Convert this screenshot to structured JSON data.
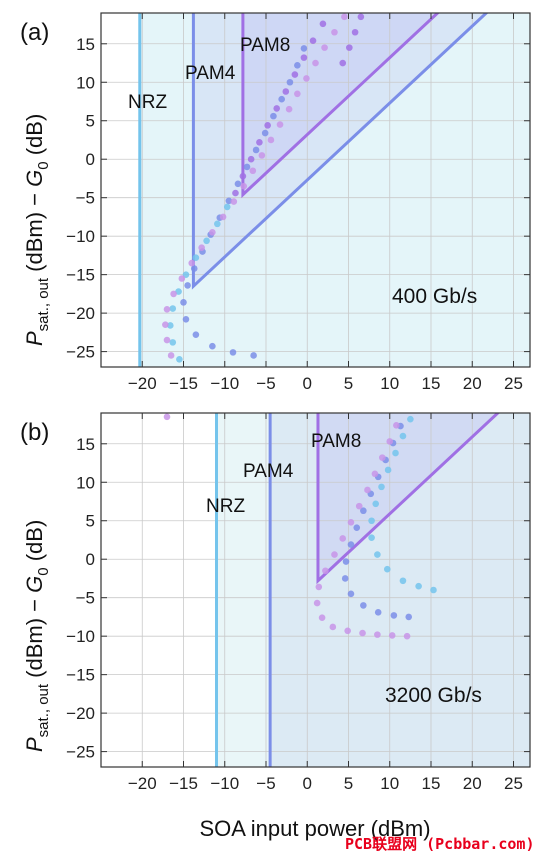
{
  "chart_data": [
    {
      "type": "area",
      "panel_label": "(a)",
      "rate_label": "400 Gb/s",
      "xlim": [
        -25,
        27
      ],
      "ylim": [
        -27,
        19
      ],
      "x_ticks": [
        -20,
        -15,
        -10,
        -5,
        0,
        5,
        10,
        15,
        20,
        25
      ],
      "y_ticks": [
        -25,
        -20,
        -15,
        -10,
        -5,
        0,
        5,
        10,
        15
      ],
      "ylabel": "P_sat., out (dBm) − G_0 (dB)",
      "xlabel": "",
      "regions": [
        {
          "name": "NRZ",
          "x_start": -20.3,
          "color": "#74c4ec",
          "fill": "#dff3f8"
        },
        {
          "name": "PAM4",
          "vertex": [
            -13.8,
            -16.5
          ],
          "slope": 1,
          "color": "#7b8ee8",
          "fill": "#d6e3f6"
        },
        {
          "name": "PAM8",
          "vertex": [
            -7.8,
            -4.6
          ],
          "slope": 1,
          "color": "#a070e4",
          "fill": "#ccd3f4"
        }
      ],
      "dotted_series": [
        {
          "color": "#74c4ec",
          "points": [
            [
              -15.5,
              -26
            ],
            [
              -16.3,
              -23.8
            ],
            [
              -16.6,
              -21.6
            ],
            [
              -16.3,
              -19.4
            ],
            [
              -15.6,
              -17.2
            ],
            [
              -14.7,
              -15
            ],
            [
              -13.5,
              -12.8
            ],
            [
              -12.2,
              -10.6
            ],
            [
              -10.9,
              -8.4
            ],
            [
              -9.7,
              -6.2
            ]
          ]
        },
        {
          "color": "#7b8ee8",
          "points": [
            [
              -6.5,
              -25.5
            ],
            [
              -9,
              -25.1
            ],
            [
              -11.5,
              -24.3
            ],
            [
              -13.5,
              -22.8
            ],
            [
              -14.7,
              -20.8
            ],
            [
              -15,
              -18.6
            ],
            [
              -14.5,
              -16.4
            ],
            [
              -13.7,
              -14.2
            ],
            [
              -12.7,
              -12
            ],
            [
              -11.7,
              -9.8
            ],
            [
              -10.6,
              -7.6
            ],
            [
              -9.5,
              -5.4
            ],
            [
              -8.4,
              -3.2
            ],
            [
              -7.3,
              -1
            ],
            [
              -6.2,
              1.2
            ],
            [
              -5.1,
              3.4
            ],
            [
              -4.1,
              5.6
            ],
            [
              -3.1,
              7.8
            ],
            [
              -2.1,
              10
            ],
            [
              -1.2,
              12.2
            ],
            [
              -0.4,
              14.4
            ]
          ]
        },
        {
          "color": "#c894e8",
          "points": [
            [
              -16.5,
              -25.5
            ],
            [
              -17,
              -23.5
            ],
            [
              -17.2,
              -21.5
            ],
            [
              -17,
              -19.5
            ],
            [
              -16.2,
              -17.5
            ],
            [
              -15.2,
              -15.5
            ],
            [
              -14,
              -13.5
            ],
            [
              -12.8,
              -11.5
            ],
            [
              -11.5,
              -9.5
            ],
            [
              -10.2,
              -7.5
            ],
            [
              -8.9,
              -5.5
            ],
            [
              -7.7,
              -3.5
            ],
            [
              -6.6,
              -1.5
            ],
            [
              -5.5,
              0.5
            ],
            [
              -4.4,
              2.5
            ],
            [
              -3.3,
              4.5
            ],
            [
              -2.2,
              6.5
            ],
            [
              -1.2,
              8.5
            ],
            [
              -0.1,
              10.5
            ],
            [
              1,
              12.5
            ],
            [
              2.1,
              14.5
            ],
            [
              3.3,
              16.5
            ],
            [
              4.5,
              18.5
            ]
          ]
        },
        {
          "color": "#a070e4",
          "points": [
            [
              -8.7,
              -4.4
            ],
            [
              -7.8,
              -2.2
            ],
            [
              -6.8,
              0
            ],
            [
              -5.8,
              2.2
            ],
            [
              -4.8,
              4.4
            ],
            [
              -3.7,
              6.6
            ],
            [
              -2.6,
              8.8
            ],
            [
              -1.5,
              11
            ],
            [
              -0.4,
              13.2
            ],
            [
              0.7,
              15.4
            ],
            [
              1.9,
              17.6
            ],
            [
              6.5,
              18.5
            ],
            [
              5.8,
              16.5
            ],
            [
              5.1,
              14.5
            ],
            [
              4.3,
              12.5
            ]
          ]
        }
      ]
    },
    {
      "type": "area",
      "panel_label": "(b)",
      "rate_label": "3200 Gb/s",
      "xlim": [
        -25,
        27
      ],
      "ylim": [
        -27,
        19
      ],
      "x_ticks": [
        -20,
        -15,
        -10,
        -5,
        0,
        5,
        10,
        15,
        20,
        25
      ],
      "y_ticks": [
        -25,
        -20,
        -15,
        -10,
        -5,
        0,
        5,
        10,
        15
      ],
      "xlabel": "SOA input power (dBm)",
      "ylabel": "P_sat., out (dBm) − G_0 (dB)",
      "regions": [
        {
          "name": "NRZ",
          "x_start": -11,
          "color": "#74c4ec",
          "fill": "#e5f5f7"
        },
        {
          "name": "PAM4",
          "x_start": -4.5,
          "color": "#7b8ee8",
          "fill": "#d9e8f3"
        },
        {
          "name": "PAM8",
          "vertex": [
            1.3,
            -2.8
          ],
          "slope": 1,
          "color": "#a070e4",
          "fill": "#cfd7f2"
        }
      ],
      "dotted_series": [
        {
          "color": "#74c4ec",
          "points": [
            [
              15.3,
              -4
            ],
            [
              13.5,
              -3.5
            ],
            [
              11.6,
              -2.8
            ],
            [
              9.7,
              -1.3
            ],
            [
              8.5,
              0.6
            ],
            [
              7.8,
              2.8
            ],
            [
              7.8,
              5
            ],
            [
              8.3,
              7.2
            ],
            [
              9,
              9.4
            ],
            [
              9.8,
              11.6
            ],
            [
              10.7,
              13.8
            ],
            [
              11.6,
              16
            ],
            [
              12.5,
              18.2
            ]
          ]
        },
        {
          "color": "#7b8ee8",
          "points": [
            [
              12.3,
              -7.5
            ],
            [
              10.5,
              -7.3
            ],
            [
              8.6,
              -6.9
            ],
            [
              6.8,
              -6
            ],
            [
              5.3,
              -4.5
            ],
            [
              4.6,
              -2.5
            ],
            [
              4.7,
              -0.3
            ],
            [
              5.3,
              1.9
            ],
            [
              6,
              4.1
            ],
            [
              6.8,
              6.3
            ],
            [
              7.7,
              8.5
            ],
            [
              8.6,
              10.7
            ],
            [
              9.5,
              12.9
            ],
            [
              10.4,
              15.1
            ],
            [
              11.3,
              17.3
            ]
          ]
        },
        {
          "color": "#c894e8",
          "points": [
            [
              12.1,
              -10
            ],
            [
              10.3,
              -9.9
            ],
            [
              8.5,
              -9.8
            ],
            [
              6.7,
              -9.6
            ],
            [
              4.9,
              -9.3
            ],
            [
              3.1,
              -8.8
            ],
            [
              1.8,
              -7.6
            ],
            [
              1.2,
              -5.7
            ],
            [
              1.4,
              -3.6
            ],
            [
              2.2,
              -1.5
            ],
            [
              3.3,
              0.6
            ],
            [
              4.3,
              2.7
            ],
            [
              5.3,
              4.8
            ],
            [
              6.3,
              6.9
            ],
            [
              7.3,
              9
            ],
            [
              8.2,
              11.1
            ],
            [
              9.1,
              13.2
            ],
            [
              10,
              15.3
            ],
            [
              10.8,
              17.4
            ],
            [
              -17,
              18.5
            ]
          ]
        }
      ]
    }
  ],
  "watermark": "PCB联盟网 (Pcbbar.com)"
}
